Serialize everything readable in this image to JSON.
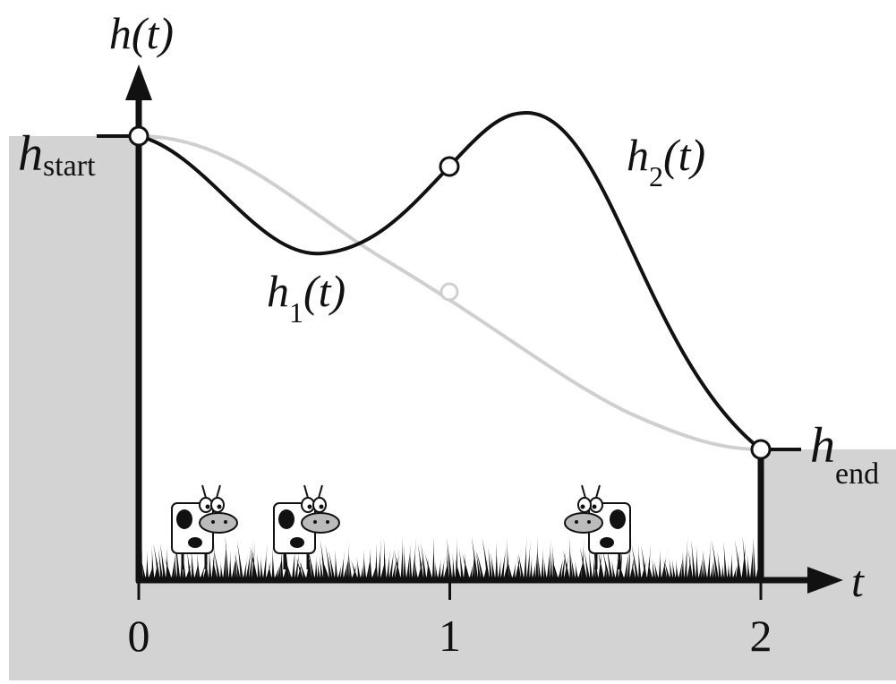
{
  "axes": {
    "y_label": "h(t)",
    "x_label": "t",
    "x_ticks": [
      0,
      1,
      2
    ]
  },
  "labels": {
    "h_start": {
      "base": "h",
      "sub": "start"
    },
    "h_end": {
      "base": "h",
      "sub": "end"
    },
    "h1": {
      "base": "h",
      "sub": "1",
      "tail": "(t)"
    },
    "h2": {
      "base": "h",
      "sub": "2",
      "tail": "(t)"
    }
  }
}
